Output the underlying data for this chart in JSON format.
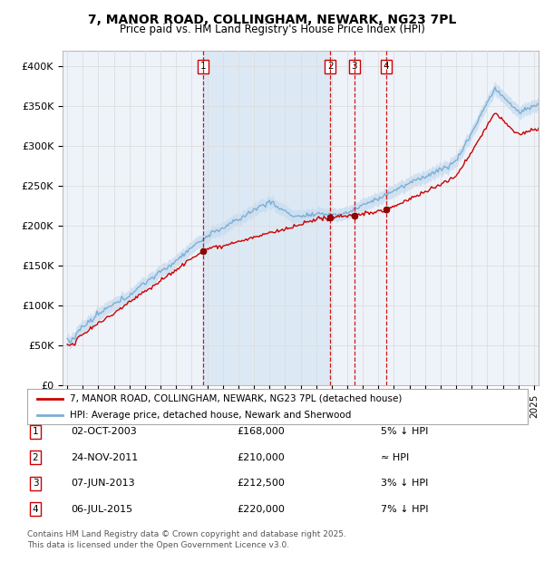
{
  "title1": "7, MANOR ROAD, COLLINGHAM, NEWARK, NG23 7PL",
  "title2": "Price paid vs. HM Land Registry's House Price Index (HPI)",
  "ylabel_ticks": [
    "£0",
    "£50K",
    "£100K",
    "£150K",
    "£200K",
    "£250K",
    "£300K",
    "£350K",
    "£400K"
  ],
  "ytick_vals": [
    0,
    50000,
    100000,
    150000,
    200000,
    250000,
    300000,
    350000,
    400000
  ],
  "ylim": [
    0,
    420000
  ],
  "xlim_start": 1994.7,
  "xlim_end": 2025.3,
  "sale_color": "#cc0000",
  "hpi_line_color": "#7bafd4",
  "hpi_fill_color": "#c8ddf0",
  "vline_color": "#cc0000",
  "shade_color": "#dce9f5",
  "grid_color": "#dddddd",
  "plot_bg": "#eef3fa",
  "transactions": [
    {
      "num": 1,
      "date": "02-OCT-2003",
      "year": 2003.75,
      "price": 168000,
      "label": "5% ↓ HPI"
    },
    {
      "num": 2,
      "date": "24-NOV-2011",
      "year": 2011.9,
      "price": 210000,
      "label": "≈ HPI"
    },
    {
      "num": 3,
      "date": "07-JUN-2013",
      "year": 2013.45,
      "price": 212500,
      "label": "3% ↓ HPI"
    },
    {
      "num": 4,
      "date": "06-JUL-2015",
      "year": 2015.52,
      "price": 220000,
      "label": "7% ↓ HPI"
    }
  ],
  "legend_sale": "7, MANOR ROAD, COLLINGHAM, NEWARK, NG23 7PL (detached house)",
  "legend_hpi": "HPI: Average price, detached house, Newark and Sherwood",
  "footnote1": "Contains HM Land Registry data © Crown copyright and database right 2025.",
  "footnote2": "This data is licensed under the Open Government Licence v3.0."
}
